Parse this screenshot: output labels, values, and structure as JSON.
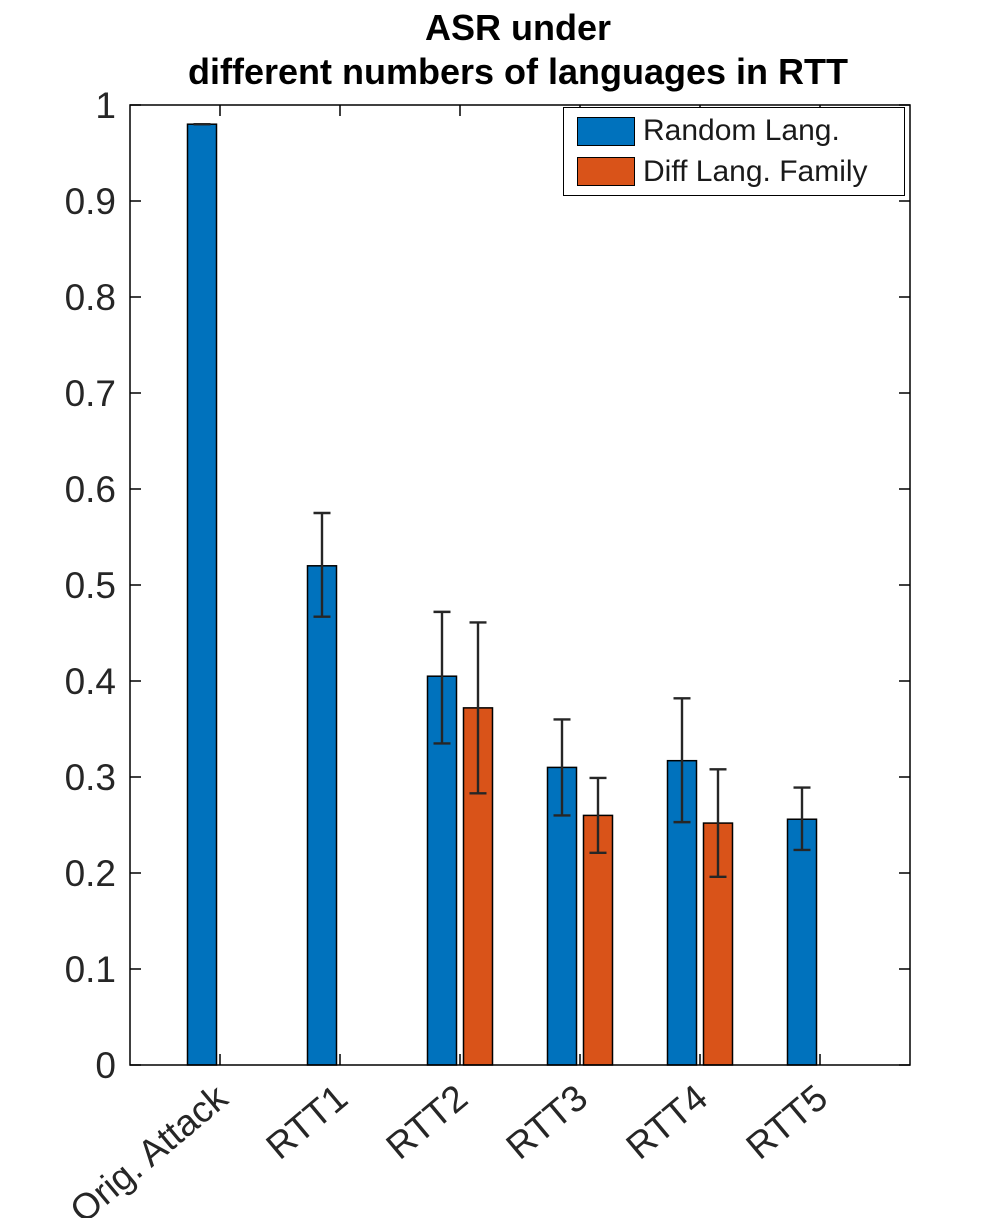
{
  "chart_data": {
    "type": "bar",
    "title_lines": [
      "ASR under",
      "different numbers of languages in RTT"
    ],
    "title": "ASR under different numbers of languages in RTT",
    "categories": [
      "Orig. Attack",
      "RTT1",
      "RTT2",
      "RTT3",
      "RTT4",
      "RTT5"
    ],
    "series": [
      {
        "name": "Random Lang.",
        "color": "#0072BD",
        "values": [
          0.98,
          0.52,
          0.405,
          0.31,
          0.317,
          0.256
        ],
        "err_low": [
          0.98,
          0.467,
          0.335,
          0.26,
          0.253,
          0.224
        ],
        "err_high": [
          0.98,
          0.575,
          0.472,
          0.36,
          0.382,
          0.289
        ]
      },
      {
        "name": "Diff Lang. Family",
        "color": "#D95319",
        "values": [
          null,
          null,
          0.372,
          0.26,
          0.252,
          null
        ],
        "err_low": [
          null,
          null,
          0.283,
          0.221,
          0.196,
          null
        ],
        "err_high": [
          null,
          null,
          0.461,
          0.299,
          0.308,
          null
        ]
      }
    ],
    "xlabel": "",
    "ylabel": "",
    "ylim": [
      0,
      1
    ],
    "yticks": [
      0,
      0.1,
      0.2,
      0.3,
      0.4,
      0.5,
      0.6,
      0.7,
      0.8,
      0.9,
      1
    ],
    "ytick_labels": [
      "0",
      "0.1",
      "0.2",
      "0.3",
      "0.4",
      "0.5",
      "0.6",
      "0.7",
      "0.8",
      "0.9",
      "1"
    ],
    "x_tick_angle_deg": -40,
    "grid": false,
    "legend_position": "top-right",
    "colors": {
      "axis": "#000000",
      "tick_label": "#262626",
      "error_bar": "#262626",
      "bar_edge": "#000000",
      "background": "#ffffff"
    }
  }
}
